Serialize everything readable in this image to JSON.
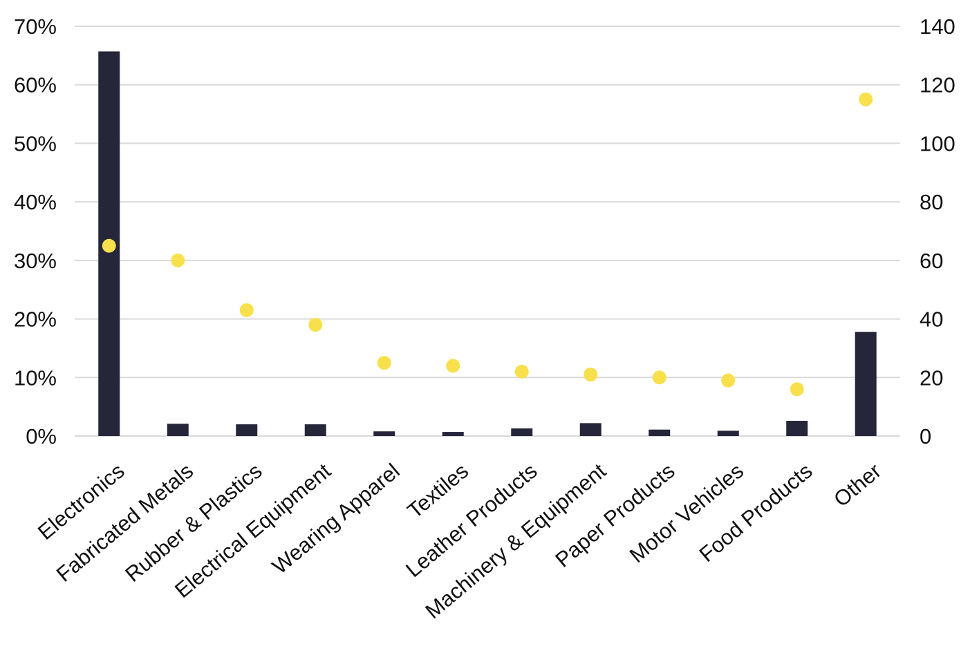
{
  "chart_data": {
    "type": "bar",
    "title": "",
    "xlabel": "",
    "ylabel": "",
    "y2label": "",
    "categories": [
      "Electronics",
      "Fabricated Metals",
      "Rubber & Plastics",
      "Electrical Equipment",
      "Wearing Apparel",
      "Textiles",
      "Leather Products",
      "Machinery & Equipment",
      "Paper Products",
      "Motor Vehicles",
      "Food Products",
      "Other"
    ],
    "series": [
      {
        "type": "bar",
        "axis": "left",
        "color": "#26263a",
        "values": [
          65.7,
          2.1,
          2.0,
          2.0,
          0.8,
          0.7,
          1.3,
          2.2,
          1.1,
          0.9,
          2.6,
          17.8
        ]
      },
      {
        "type": "scatter",
        "axis": "right",
        "color": "#f7e04b",
        "values": [
          65,
          60,
          43,
          38,
          25,
          24,
          22,
          21,
          20,
          19,
          16,
          115
        ]
      }
    ],
    "ylim": [
      0,
      70
    ],
    "y_ticks": [
      "0%",
      "10%",
      "20%",
      "30%",
      "40%",
      "50%",
      "60%",
      "70%"
    ],
    "y2lim": [
      0,
      140
    ],
    "y2_ticks": [
      "0",
      "20",
      "40",
      "60",
      "80",
      "100",
      "120",
      "140"
    ],
    "grid": true,
    "legend": "none"
  }
}
